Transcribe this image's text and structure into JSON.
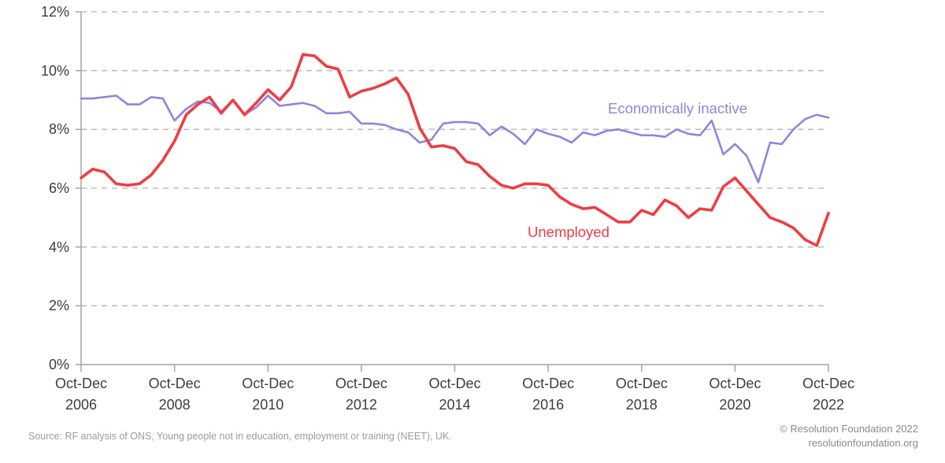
{
  "chart_data": {
    "type": "line",
    "title": "",
    "xlabel": "",
    "ylabel": "",
    "y_unit": "%",
    "ylim": [
      0,
      12
    ],
    "grid": "horizontal dashed gridlines at every 2%",
    "legend_position": "inline labels next to lines",
    "x_frequency": "quarterly",
    "x_range": "Oct-Dec 2006 to Oct-Dec 2022",
    "y_ticks": [
      {
        "value": 0,
        "label": "0%"
      },
      {
        "value": 2,
        "label": "2%"
      },
      {
        "value": 4,
        "label": "4%"
      },
      {
        "value": 6,
        "label": "6%"
      },
      {
        "value": 8,
        "label": "8%"
      },
      {
        "value": 10,
        "label": "10%"
      },
      {
        "value": 12,
        "label": "12%"
      }
    ],
    "x_tick_labels": [
      {
        "period": "Oct-Dec",
        "year": "2006"
      },
      {
        "period": "Oct-Dec",
        "year": "2008"
      },
      {
        "period": "Oct-Dec",
        "year": "2010"
      },
      {
        "period": "Oct-Dec",
        "year": "2012"
      },
      {
        "period": "Oct-Dec",
        "year": "2014"
      },
      {
        "period": "Oct-Dec",
        "year": "2016"
      },
      {
        "period": "Oct-Dec",
        "year": "2018"
      },
      {
        "period": "Oct-Dec",
        "year": "2020"
      },
      {
        "period": "Oct-Dec",
        "year": "2022"
      }
    ],
    "series": [
      {
        "name": "Economically inactive",
        "color": "#9184dc",
        "stroke_width": 2.6,
        "values": [
          9.05,
          9.05,
          9.1,
          9.15,
          8.85,
          8.85,
          9.1,
          9.05,
          8.3,
          8.7,
          8.95,
          8.9,
          8.6,
          9.0,
          8.5,
          8.75,
          9.15,
          8.8,
          8.85,
          8.9,
          8.8,
          8.55,
          8.55,
          8.6,
          8.2,
          8.2,
          8.15,
          8.0,
          7.9,
          7.55,
          7.65,
          8.2,
          8.25,
          8.25,
          8.2,
          7.8,
          8.1,
          7.85,
          7.5,
          8.0,
          7.85,
          7.75,
          7.55,
          7.9,
          7.8,
          7.95,
          8.0,
          7.9,
          7.8,
          7.8,
          7.75,
          8.0,
          7.85,
          7.8,
          8.3,
          7.15,
          7.5,
          7.1,
          6.2,
          7.55,
          7.5,
          8.0,
          8.35,
          8.5,
          8.4
        ]
      },
      {
        "name": "Unemployed",
        "color": "#ee3d43",
        "stroke_width": 3.6,
        "values": [
          6.35,
          6.65,
          6.55,
          6.15,
          6.1,
          6.15,
          6.45,
          6.95,
          7.6,
          8.5,
          8.85,
          9.1,
          8.55,
          9.0,
          8.5,
          8.9,
          9.35,
          9.0,
          9.45,
          10.55,
          10.5,
          10.15,
          10.05,
          9.1,
          9.3,
          9.4,
          9.55,
          9.75,
          9.2,
          8.05,
          7.4,
          7.45,
          7.35,
          6.9,
          6.8,
          6.4,
          6.1,
          6.0,
          6.15,
          6.15,
          6.1,
          5.7,
          5.45,
          5.3,
          5.35,
          5.1,
          4.85,
          4.85,
          5.25,
          5.1,
          5.6,
          5.4,
          5.0,
          5.3,
          5.25,
          6.05,
          6.35,
          5.9,
          5.45,
          5.0,
          4.85,
          4.65,
          4.25,
          4.05,
          5.15
        ]
      }
    ],
    "style": {
      "gridline_color": "#bdbdbd",
      "axis_color": "#a3a3a3",
      "tick_text_color": "#3d3d3d"
    }
  },
  "footer": {
    "source": "Source: RF analysis of ONS, Young people not in education, employment or training (NEET), UK.",
    "copyright": "© Resolution Foundation 2022",
    "website": "resolutionfoundation.org"
  }
}
